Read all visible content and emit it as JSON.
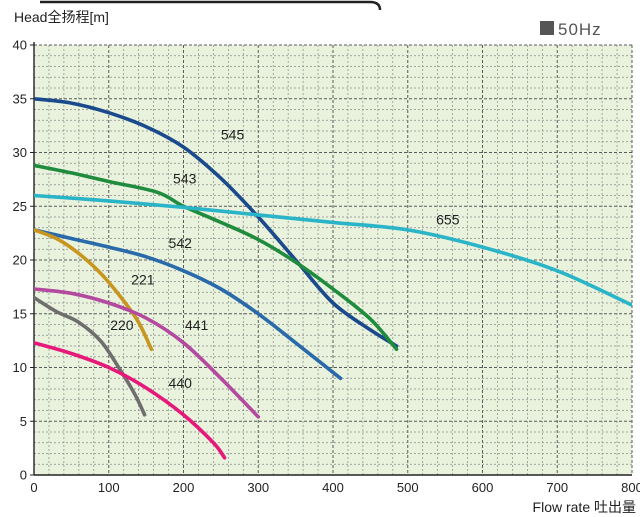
{
  "chart_data": {
    "type": "line",
    "ylabel": "Head全扬程[m]",
    "xlabel": "Flow rate 吐出量",
    "badge": "50Hz",
    "xlim": [
      0,
      800
    ],
    "ylim": [
      0,
      40
    ],
    "xticks": [
      "0",
      "100",
      "200",
      "300",
      "400",
      "500",
      "600",
      "700",
      "800"
    ],
    "yticks": [
      "0",
      "5",
      "10",
      "15",
      "20",
      "25",
      "30",
      "35",
      "40"
    ],
    "grid": true,
    "series": [
      {
        "name": "545",
        "color": "#1a4a8c",
        "x": [
          0,
          50,
          100,
          150,
          200,
          250,
          300,
          350,
          400,
          450,
          485
        ],
        "y": [
          35,
          34.6,
          33.7,
          32.4,
          30.5,
          27.6,
          24,
          20,
          16,
          13.5,
          12
        ]
      },
      {
        "name": "543",
        "color": "#1e8c3c",
        "x": [
          0,
          50,
          100,
          165,
          200,
          250,
          300,
          350,
          400,
          450,
          485
        ],
        "y": [
          28.8,
          28.1,
          27.3,
          26.3,
          25,
          23.5,
          21.9,
          19.8,
          17.3,
          14.5,
          11.7
        ]
      },
      {
        "name": "655",
        "color": "#2ab4c8",
        "x": [
          0,
          100,
          200,
          300,
          400,
          500,
          600,
          700,
          800
        ],
        "y": [
          26,
          25.5,
          24.9,
          24.2,
          23.5,
          22.8,
          21.2,
          19,
          15.8
        ]
      },
      {
        "name": "542",
        "color": "#2a6aaa",
        "x": [
          0,
          50,
          100,
          150,
          200,
          250,
          300,
          350,
          410
        ],
        "y": [
          22.8,
          22,
          21.2,
          20.3,
          19,
          17.3,
          15,
          12.3,
          9
        ]
      },
      {
        "name": "221",
        "color": "#c8961e",
        "x": [
          0,
          30,
          60,
          90,
          120,
          140,
          157
        ],
        "y": [
          22.8,
          22,
          20.6,
          18.7,
          16.2,
          14.2,
          11.7
        ]
      },
      {
        "name": "441",
        "color": "#b44aa0",
        "x": [
          0,
          50,
          100,
          150,
          200,
          250,
          300
        ],
        "y": [
          17.3,
          16.9,
          16,
          14.6,
          12.3,
          9,
          5.4
        ]
      },
      {
        "name": "220",
        "color": "#6e6e6e",
        "x": [
          0,
          30,
          60,
          90,
          115,
          135,
          148
        ],
        "y": [
          16.5,
          15.2,
          14.2,
          12.4,
          9.8,
          7.5,
          5.6
        ]
      },
      {
        "name": "440",
        "color": "#e6197a",
        "x": [
          0,
          50,
          100,
          150,
          200,
          240,
          255
        ],
        "y": [
          12.3,
          11.3,
          10,
          8.1,
          5.6,
          3,
          1.6
        ]
      }
    ],
    "annotations": [
      {
        "text": "545",
        "x": 250,
        "y": 31.2
      },
      {
        "text": "543",
        "x": 186,
        "y": 27.1
      },
      {
        "text": "655",
        "x": 538,
        "y": 23.3
      },
      {
        "text": "542",
        "x": 180,
        "y": 21.1
      },
      {
        "text": "221",
        "x": 130,
        "y": 17.7
      },
      {
        "text": "441",
        "x": 202,
        "y": 13.5
      },
      {
        "text": "220",
        "x": 102,
        "y": 13.5
      },
      {
        "text": "440",
        "x": 180,
        "y": 8.1
      }
    ]
  }
}
